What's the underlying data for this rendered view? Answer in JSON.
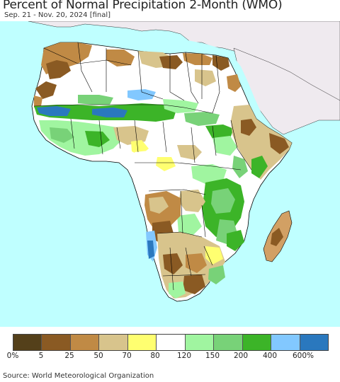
{
  "title": "Percent of Normal Precipitation 2-Month (WMO)",
  "subtitle": "Sep. 21 - Nov. 20, 2024 [final]",
  "source": "Source: World Meteorological Organization",
  "colors": {
    "ocean": "#bfffff",
    "outside_region": "#efeaef",
    "border": "#000000"
  },
  "legend": {
    "swatch_colors": [
      "#54401a",
      "#8a5a23",
      "#c08a45",
      "#d8c48c",
      "#ffff70",
      "#ffffff",
      "#a0f5a0",
      "#78d278",
      "#3cb428",
      "#82c8ff",
      "#2a78be"
    ],
    "labels": [
      "0%",
      "5",
      "25",
      "50",
      "70",
      "80",
      "120",
      "150",
      "200",
      "400",
      "600%"
    ]
  }
}
